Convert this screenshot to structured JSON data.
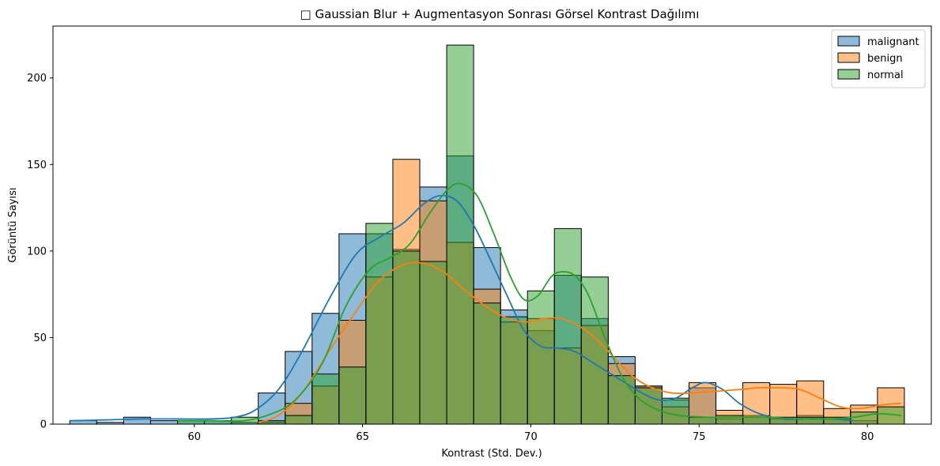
{
  "chart_data": {
    "type": "histogram",
    "title": "□ Gaussian Blur + Augmentasyon Sonrası Görsel Kontrast Dağılımı",
    "xlabel": "Kontrast (Std. Dev.)",
    "ylabel": "Görüntü Sayısı",
    "xlim": [
      55.8,
      81.9
    ],
    "ylim": [
      0,
      230
    ],
    "x_ticks": [
      60,
      65,
      70,
      75,
      80
    ],
    "y_ticks": [
      0,
      50,
      100,
      150,
      200
    ],
    "legend_position": "top-right",
    "grid": false,
    "series": [
      {
        "name": "malignant",
        "color": "#1f77b4",
        "bins": [
          [
            56.3,
            57.1,
            2
          ],
          [
            57.1,
            57.9,
            1
          ],
          [
            57.9,
            58.7,
            4
          ],
          [
            58.7,
            59.5,
            2
          ],
          [
            59.5,
            60.3,
            2
          ],
          [
            60.3,
            61.1,
            2
          ],
          [
            61.1,
            61.9,
            1
          ],
          [
            61.9,
            62.7,
            18
          ],
          [
            62.7,
            63.5,
            42
          ],
          [
            63.5,
            64.3,
            64
          ],
          [
            64.3,
            65.1,
            110
          ],
          [
            65.1,
            65.9,
            110
          ],
          [
            65.9,
            66.7,
            101
          ],
          [
            66.7,
            67.5,
            137
          ],
          [
            67.5,
            68.3,
            155
          ],
          [
            68.3,
            69.1,
            102
          ],
          [
            69.1,
            69.9,
            66
          ],
          [
            69.9,
            70.7,
            54
          ],
          [
            70.7,
            71.5,
            86
          ],
          [
            71.5,
            72.3,
            61
          ],
          [
            72.3,
            73.1,
            39
          ],
          [
            73.1,
            73.9,
            22
          ],
          [
            73.9,
            74.7,
            14
          ],
          [
            74.7,
            75.5,
            21
          ],
          [
            75.5,
            76.3,
            3
          ],
          [
            76.3,
            77.1,
            5
          ],
          [
            77.1,
            77.9,
            3
          ],
          [
            77.9,
            78.7,
            5
          ],
          [
            78.7,
            79.5,
            3
          ],
          [
            79.5,
            80.3,
            2
          ]
        ],
        "kde": [
          [
            56.3,
            2
          ],
          [
            57.5,
            2.5
          ],
          [
            58.5,
            3
          ],
          [
            59.5,
            3
          ],
          [
            60.5,
            3
          ],
          [
            61.2,
            4
          ],
          [
            61.8,
            8
          ],
          [
            62.5,
            20
          ],
          [
            63.2,
            42
          ],
          [
            64.0,
            72
          ],
          [
            64.8,
            98
          ],
          [
            65.5,
            108
          ],
          [
            66.2,
            116
          ],
          [
            66.8,
            127
          ],
          [
            67.3,
            132
          ],
          [
            67.8,
            129
          ],
          [
            68.3,
            115
          ],
          [
            68.8,
            95
          ],
          [
            69.3,
            74
          ],
          [
            69.8,
            54
          ],
          [
            70.3,
            45
          ],
          [
            70.8,
            44
          ],
          [
            71.3,
            42
          ],
          [
            71.8,
            36
          ],
          [
            72.3,
            30
          ],
          [
            72.8,
            24
          ],
          [
            73.3,
            18
          ],
          [
            73.8,
            14
          ],
          [
            74.3,
            15
          ],
          [
            74.8,
            21
          ],
          [
            75.2,
            24
          ],
          [
            75.7,
            20
          ],
          [
            76.2,
            12
          ],
          [
            76.8,
            6
          ],
          [
            77.5,
            3
          ],
          [
            78.3,
            3
          ],
          [
            79.0,
            3
          ],
          [
            79.6,
            2
          ]
        ]
      },
      {
        "name": "benign",
        "color": "#ff7f0e",
        "bins": [
          [
            61.9,
            62.7,
            1
          ],
          [
            62.7,
            63.5,
            12
          ],
          [
            63.5,
            64.3,
            22
          ],
          [
            64.3,
            65.1,
            60
          ],
          [
            65.1,
            65.9,
            85
          ],
          [
            65.9,
            66.7,
            153
          ],
          [
            66.7,
            67.5,
            129
          ],
          [
            67.5,
            68.3,
            105
          ],
          [
            68.3,
            69.1,
            78
          ],
          [
            69.1,
            69.9,
            59
          ],
          [
            69.9,
            70.7,
            61
          ],
          [
            70.7,
            71.5,
            44
          ],
          [
            71.5,
            72.3,
            57
          ],
          [
            72.3,
            73.1,
            35
          ],
          [
            73.1,
            73.9,
            22
          ],
          [
            73.9,
            74.7,
            10
          ],
          [
            74.7,
            75.5,
            24
          ],
          [
            75.5,
            76.3,
            8
          ],
          [
            76.3,
            77.1,
            24
          ],
          [
            77.1,
            77.9,
            23
          ],
          [
            77.9,
            78.7,
            25
          ],
          [
            78.7,
            79.5,
            9
          ],
          [
            79.5,
            80.3,
            11
          ],
          [
            80.3,
            81.1,
            21
          ]
        ],
        "kde": [
          [
            61.9,
            1
          ],
          [
            62.5,
            5
          ],
          [
            63.2,
            18
          ],
          [
            64.0,
            42
          ],
          [
            64.8,
            65
          ],
          [
            65.5,
            83
          ],
          [
            66.2,
            92
          ],
          [
            66.8,
            93
          ],
          [
            67.4,
            88
          ],
          [
            68.0,
            78
          ],
          [
            68.6,
            69
          ],
          [
            69.2,
            62
          ],
          [
            69.8,
            59
          ],
          [
            70.4,
            61
          ],
          [
            70.9,
            61
          ],
          [
            71.4,
            57
          ],
          [
            71.9,
            50
          ],
          [
            72.5,
            38
          ],
          [
            73.0,
            28
          ],
          [
            73.6,
            21
          ],
          [
            74.2,
            18
          ],
          [
            74.8,
            18
          ],
          [
            75.5,
            19
          ],
          [
            76.2,
            20
          ],
          [
            76.8,
            21
          ],
          [
            77.4,
            21
          ],
          [
            78.0,
            20
          ],
          [
            78.6,
            15
          ],
          [
            79.2,
            10
          ],
          [
            79.8,
            9
          ],
          [
            80.4,
            11
          ],
          [
            81.0,
            12
          ]
        ]
      },
      {
        "name": "normal",
        "color": "#2ca02c",
        "bins": [
          [
            59.5,
            60.3,
            2
          ],
          [
            60.3,
            61.1,
            2
          ],
          [
            61.1,
            61.9,
            4
          ],
          [
            61.9,
            62.7,
            2
          ],
          [
            62.7,
            63.5,
            5
          ],
          [
            63.5,
            64.3,
            29
          ],
          [
            64.3,
            65.1,
            33
          ],
          [
            65.1,
            65.9,
            116
          ],
          [
            65.9,
            66.7,
            100
          ],
          [
            66.7,
            67.5,
            94
          ],
          [
            67.5,
            68.3,
            219
          ],
          [
            68.3,
            69.1,
            70
          ],
          [
            69.1,
            69.9,
            62
          ],
          [
            69.9,
            70.7,
            77
          ],
          [
            70.7,
            71.5,
            113
          ],
          [
            71.5,
            72.3,
            85
          ],
          [
            72.3,
            73.1,
            28
          ],
          [
            73.1,
            73.9,
            21
          ],
          [
            73.9,
            74.7,
            15
          ],
          [
            74.7,
            75.5,
            4
          ],
          [
            75.5,
            76.3,
            5
          ],
          [
            76.3,
            77.1,
            4
          ],
          [
            77.1,
            77.9,
            4
          ],
          [
            77.9,
            78.7,
            4
          ],
          [
            78.7,
            79.5,
            4
          ],
          [
            79.5,
            80.3,
            7
          ],
          [
            80.3,
            81.1,
            10
          ]
        ],
        "kde": [
          [
            59.5,
            2
          ],
          [
            60.5,
            2
          ],
          [
            61.5,
            2
          ],
          [
            62.3,
            6
          ],
          [
            63.0,
            14
          ],
          [
            63.8,
            35
          ],
          [
            64.5,
            68
          ],
          [
            65.2,
            89
          ],
          [
            65.8,
            96
          ],
          [
            66.4,
            104
          ],
          [
            67.0,
            122
          ],
          [
            67.5,
            135
          ],
          [
            67.9,
            139
          ],
          [
            68.4,
            132
          ],
          [
            68.9,
            110
          ],
          [
            69.4,
            85
          ],
          [
            69.8,
            72
          ],
          [
            70.2,
            74
          ],
          [
            70.6,
            85
          ],
          [
            70.9,
            88
          ],
          [
            71.3,
            86
          ],
          [
            71.7,
            75
          ],
          [
            72.2,
            50
          ],
          [
            72.7,
            28
          ],
          [
            73.2,
            15
          ],
          [
            73.8,
            8
          ],
          [
            74.4,
            5
          ],
          [
            75.2,
            4
          ],
          [
            76.0,
            4
          ],
          [
            77.0,
            4
          ],
          [
            78.0,
            3
          ],
          [
            78.8,
            3
          ],
          [
            79.6,
            4
          ],
          [
            80.3,
            6
          ],
          [
            81.0,
            5
          ]
        ]
      }
    ]
  }
}
